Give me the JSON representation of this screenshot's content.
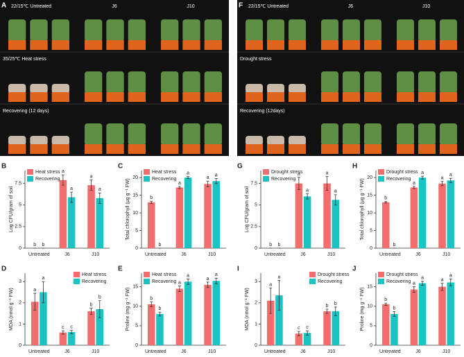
{
  "photos": [
    {
      "letter": "A",
      "header": [
        "22/15℃ Untreated",
        "J6",
        "J10"
      ],
      "rows": [
        "35/25℃ Heat stress",
        "Recovering (12 days)"
      ]
    },
    {
      "letter": "F",
      "header": [
        "22/15℃ Untreated",
        "J6",
        "J10"
      ],
      "rows": [
        "Drought stress",
        "Recovering (12days)"
      ]
    }
  ],
  "chart_data": [
    {
      "type": "bar",
      "panel": "B",
      "ylabel": "Log CFU/gram of soil",
      "categories": [
        "Untreated",
        "J6",
        "J10"
      ],
      "ylim": [
        0,
        9
      ],
      "yticks": [
        0,
        2.5,
        5,
        7.5
      ],
      "legend": "upper left",
      "series": [
        {
          "name": "Heat stress",
          "color": "#f26d6d",
          "values": [
            0,
            7.9,
            7.3
          ],
          "errors": [
            0,
            0.6,
            0.6
          ],
          "letters": [
            "b",
            "a",
            "a"
          ]
        },
        {
          "name": "Recovering",
          "color": "#1bc3c3",
          "values": [
            0,
            5.9,
            5.8
          ],
          "errors": [
            0,
            0.6,
            0.6
          ],
          "letters": [
            "b",
            "a",
            "a"
          ]
        }
      ]
    },
    {
      "type": "bar",
      "panel": "C",
      "ylabel": "Total chlorophyll (μg g⁻¹ FW)",
      "categories": [
        "Untreated",
        "J6",
        "J10"
      ],
      "ylim": [
        0,
        22
      ],
      "yticks": [
        0,
        5,
        10,
        15,
        20
      ],
      "legend": "upper left",
      "series": [
        {
          "name": "Heat stress",
          "color": "#f26d6d",
          "values": [
            13,
            17.2,
            18.2
          ],
          "errors": [
            0.3,
            0.3,
            0.8
          ],
          "letters": [
            "b",
            "a",
            "a"
          ]
        },
        {
          "name": "Recovering",
          "color": "#1bc3c3",
          "values": [
            0,
            20,
            19
          ],
          "errors": [
            0,
            0.3,
            0.7
          ],
          "letters": [
            "b",
            "a",
            "a"
          ]
        }
      ]
    },
    {
      "type": "bar",
      "panel": "D",
      "ylabel": "MDA (nmol g⁻¹ FW)",
      "categories": [
        "Untreated",
        "J6",
        "J10"
      ],
      "ylim": [
        0,
        3.4
      ],
      "yticks": [
        0,
        1,
        2,
        3
      ],
      "legend": "upper right",
      "series": [
        {
          "name": "Heat stress",
          "color": "#f26d6d",
          "values": [
            2.05,
            0.6,
            1.6
          ],
          "errors": [
            0.4,
            0.08,
            0.15
          ],
          "letters": [
            "a",
            "c",
            "b"
          ]
        },
        {
          "name": "Recovering",
          "color": "#1bc3c3",
          "values": [
            2.5,
            0.62,
            1.7
          ],
          "errors": [
            0.5,
            0.08,
            0.4
          ],
          "letters": [
            "a",
            "c",
            "b"
          ]
        }
      ]
    },
    {
      "type": "bar",
      "panel": "E",
      "ylabel": "Proline (mg g⁻¹ FW)",
      "categories": [
        "Untreated",
        "J6",
        "J10"
      ],
      "ylim": [
        0,
        18.5
      ],
      "yticks": [
        0,
        5,
        10,
        15
      ],
      "legend": "upper left",
      "series": [
        {
          "name": "Heat stress",
          "color": "#f26d6d",
          "values": [
            10.5,
            14.5,
            15.5
          ],
          "errors": [
            0.6,
            0.7,
            0.7
          ],
          "letters": [
            "b",
            "a",
            "a"
          ]
        },
        {
          "name": "Recovering",
          "color": "#1bc3c3",
          "values": [
            8,
            16.3,
            16.5
          ],
          "errors": [
            0.5,
            0.7,
            0.7
          ],
          "letters": [
            "b",
            "a",
            "a"
          ]
        }
      ]
    },
    {
      "type": "bar",
      "panel": "G",
      "ylabel": "Log CFU/gram of soil",
      "categories": [
        "Untreated",
        "J6",
        "J10"
      ],
      "ylim": [
        0,
        9
      ],
      "yticks": [
        0,
        2.5,
        5,
        7.5
      ],
      "legend": "upper left",
      "series": [
        {
          "name": "Drought stress",
          "color": "#f26d6d",
          "values": [
            0,
            7.5,
            7.5
          ],
          "errors": [
            0,
            0.7,
            0.8
          ],
          "letters": [
            "b",
            "a",
            "a"
          ]
        },
        {
          "name": "Recovering",
          "color": "#1bc3c3",
          "values": [
            0,
            6,
            5.6
          ],
          "errors": [
            0,
            0.3,
            0.6
          ],
          "letters": [
            "b",
            "a",
            "a"
          ]
        }
      ]
    },
    {
      "type": "bar",
      "panel": "H",
      "ylabel": "Total chlorophyll (μg g⁻¹ FW)",
      "categories": [
        "Untreated",
        "J6",
        "J10"
      ],
      "ylim": [
        0,
        22
      ],
      "yticks": [
        0,
        5,
        10,
        15,
        20
      ],
      "legend": "upper left",
      "series": [
        {
          "name": "Drought stress",
          "color": "#f26d6d",
          "values": [
            13,
            17.2,
            18.3
          ],
          "errors": [
            0.2,
            0.3,
            0.6
          ],
          "letters": [
            "b",
            "a",
            "a"
          ]
        },
        {
          "name": "Recovering",
          "color": "#1bc3c3",
          "values": [
            0,
            20,
            19.2
          ],
          "errors": [
            0,
            0.4,
            0.6
          ],
          "letters": [
            "b",
            "a",
            "a"
          ]
        }
      ]
    },
    {
      "type": "bar",
      "panel": "I",
      "ylabel": "MDA (nmol g⁻¹ FW)",
      "categories": [
        "Untreated",
        "J6",
        "J10"
      ],
      "ylim": [
        0,
        3.4
      ],
      "yticks": [
        0,
        1,
        2,
        3
      ],
      "legend": "upper right",
      "series": [
        {
          "name": "Drought stress",
          "color": "#f26d6d",
          "values": [
            2.1,
            0.55,
            1.6
          ],
          "errors": [
            0.6,
            0.1,
            0.1
          ],
          "letters": [
            "a",
            "c",
            "b"
          ]
        },
        {
          "name": "Recovering",
          "color": "#1bc3c3",
          "values": [
            2.35,
            0.58,
            1.6
          ],
          "errors": [
            0.7,
            0.1,
            0.2
          ],
          "letters": [
            "a",
            "c",
            "b"
          ]
        }
      ]
    },
    {
      "type": "bar",
      "panel": "J",
      "ylabel": "Proline (mg g⁻¹ FW)",
      "categories": [
        "Untreated",
        "J6",
        "J10"
      ],
      "ylim": [
        0,
        18.5
      ],
      "yticks": [
        0,
        5,
        10,
        15
      ],
      "legend": "upper left",
      "series": [
        {
          "name": "Drought stress",
          "color": "#f26d6d",
          "values": [
            10.5,
            14.3,
            15
          ],
          "errors": [
            0.3,
            0.7,
            0.9
          ],
          "letters": [
            "b",
            "a",
            "a"
          ]
        },
        {
          "name": "Recovering",
          "color": "#1bc3c3",
          "values": [
            8,
            15.9,
            16.1
          ],
          "errors": [
            0.6,
            0.5,
            0.9
          ],
          "letters": [
            "b",
            "a",
            "a"
          ]
        }
      ]
    }
  ]
}
